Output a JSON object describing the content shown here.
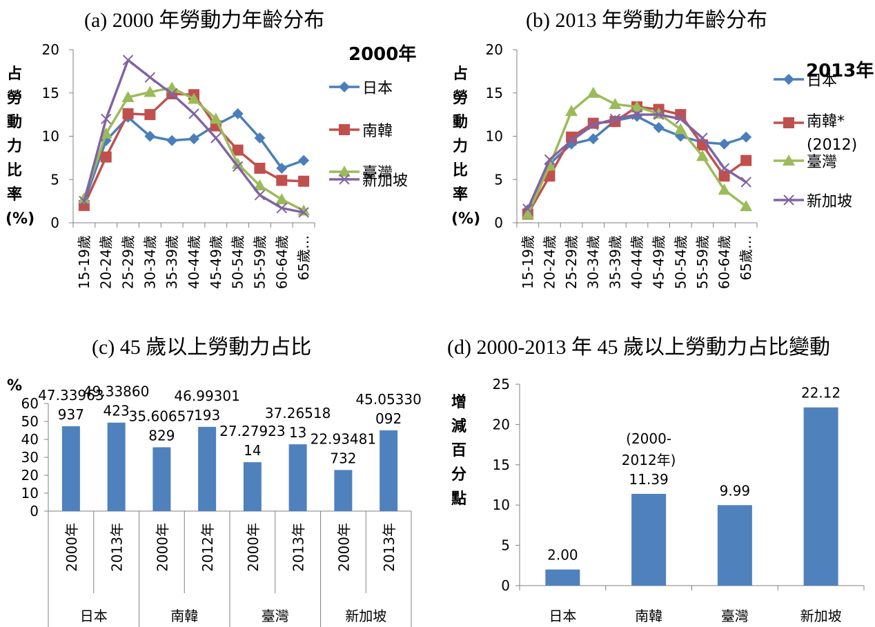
{
  "colors": {
    "japan": "#4a7ebb",
    "korea": "#c0504d",
    "taiwan": "#9bbb59",
    "singapore": "#8064a2",
    "bar": "#4f81bd",
    "axis": "#808080"
  },
  "chart_data": [
    {
      "id": "a",
      "type": "line",
      "title": "(a) 2000 年勞動力年齡分布",
      "ylabel": "占勞動力比率(%)",
      "year_label": "2000年",
      "ylim": [
        0,
        20
      ],
      "yticks": [
        "0",
        "5",
        "10",
        "15",
        "20"
      ],
      "categories": [
        "15-19歲",
        "20-24歲",
        "25-29歲",
        "30-34歲",
        "35-39歲",
        "40-44歲",
        "45-49歲",
        "50-54歲",
        "55-59歲",
        "60-64歲",
        "65歲…"
      ],
      "series": [
        {
          "name": "日本",
          "marker": "diamond",
          "values": [
            2.4,
            9.5,
            12.2,
            10.0,
            9.5,
            9.7,
            11.3,
            12.6,
            9.8,
            6.3,
            7.2
          ]
        },
        {
          "name": "南韓",
          "marker": "square",
          "values": [
            2.0,
            7.6,
            12.6,
            12.5,
            14.9,
            14.8,
            11.2,
            8.4,
            6.3,
            4.9,
            4.8
          ]
        },
        {
          "name": "臺灣",
          "marker": "triangle",
          "values": [
            2.8,
            10.3,
            14.5,
            15.1,
            15.6,
            14.3,
            12.0,
            6.8,
            4.3,
            2.7,
            1.4
          ]
        },
        {
          "name": "新加坡",
          "marker": "x",
          "values": [
            2.5,
            12.0,
            18.8,
            16.8,
            14.9,
            12.6,
            9.8,
            6.5,
            3.2,
            1.7,
            1.2
          ]
        }
      ]
    },
    {
      "id": "b",
      "type": "line",
      "title": "(b) 2013 年勞動力年齡分布",
      "ylabel": "占勞動力比率(%)",
      "year_label": "2013年",
      "ylim": [
        0,
        20
      ],
      "yticks": [
        "0",
        "5",
        "10",
        "15",
        "20"
      ],
      "categories": [
        "15-19歲",
        "20-24歲",
        "25-29歲",
        "30-34歲",
        "35-39歲",
        "40-44歲",
        "45-49歲",
        "50-54歲",
        "55-59歲",
        "60-64歲",
        "65歲…"
      ],
      "series": [
        {
          "name": "日本",
          "marker": "diamond",
          "values": [
            1.5,
            6.8,
            9.1,
            9.7,
            11.8,
            12.3,
            11.0,
            10.0,
            9.3,
            9.1,
            9.9
          ]
        },
        {
          "name": "南韓*(2012)",
          "marker": "square",
          "values": [
            1.0,
            5.4,
            9.9,
            11.5,
            11.7,
            13.4,
            13.1,
            12.5,
            9.0,
            5.4,
            7.2
          ]
        },
        {
          "name": "臺灣",
          "marker": "triangle",
          "values": [
            1.0,
            6.6,
            12.9,
            15.0,
            13.7,
            13.4,
            12.6,
            10.8,
            7.7,
            3.8,
            1.9
          ]
        },
        {
          "name": "新加坡",
          "marker": "x",
          "values": [
            1.6,
            7.3,
            9.5,
            11.3,
            12.0,
            12.5,
            12.5,
            12.0,
            9.8,
            6.3,
            4.7
          ]
        }
      ]
    },
    {
      "id": "c",
      "type": "bar",
      "title": "(c) 45 歲以上勞動力占比",
      "ylabel": "%",
      "ylim": [
        0,
        60
      ],
      "yticks": [
        "0",
        "10",
        "20",
        "30",
        "40",
        "50",
        "60"
      ],
      "categories": [
        "2000年",
        "2013年",
        "2000年",
        "2012年",
        "2000年",
        "2013年",
        "2000年",
        "2013年"
      ],
      "groups": [
        "日本",
        "南韓",
        "臺灣",
        "新加坡"
      ],
      "values": [
        47.33963937,
        49.33860423,
        35.60657829,
        46.99301193,
        27.27923014,
        37.26518013,
        22.93481732,
        45.05330092
      ],
      "labels": [
        [
          "47.33963",
          "937"
        ],
        [
          "49.33860",
          "423"
        ],
        [
          "35.60657",
          "829"
        ],
        [
          "46.99301",
          "193"
        ],
        [
          "27.27923",
          "14"
        ],
        [
          "37.26518",
          "13"
        ],
        [
          "22.93481",
          "732"
        ],
        [
          "45.05330",
          "092"
        ]
      ]
    },
    {
      "id": "d",
      "type": "bar",
      "title": "(d) 2000-2013 年 45 歲以上勞動力占比變動",
      "ylabel": "增減百分點",
      "ylim": [
        0,
        25
      ],
      "yticks": [
        "0",
        "5",
        "10",
        "15",
        "20",
        "25"
      ],
      "categories": [
        "日本",
        "南韓",
        "臺灣",
        "新加坡"
      ],
      "values": [
        2.0,
        11.39,
        9.99,
        22.12
      ],
      "labels": [
        "2.00",
        "11.39",
        "9.99",
        "22.12"
      ],
      "annotation": [
        "(2000-",
        "2012年)"
      ]
    }
  ]
}
